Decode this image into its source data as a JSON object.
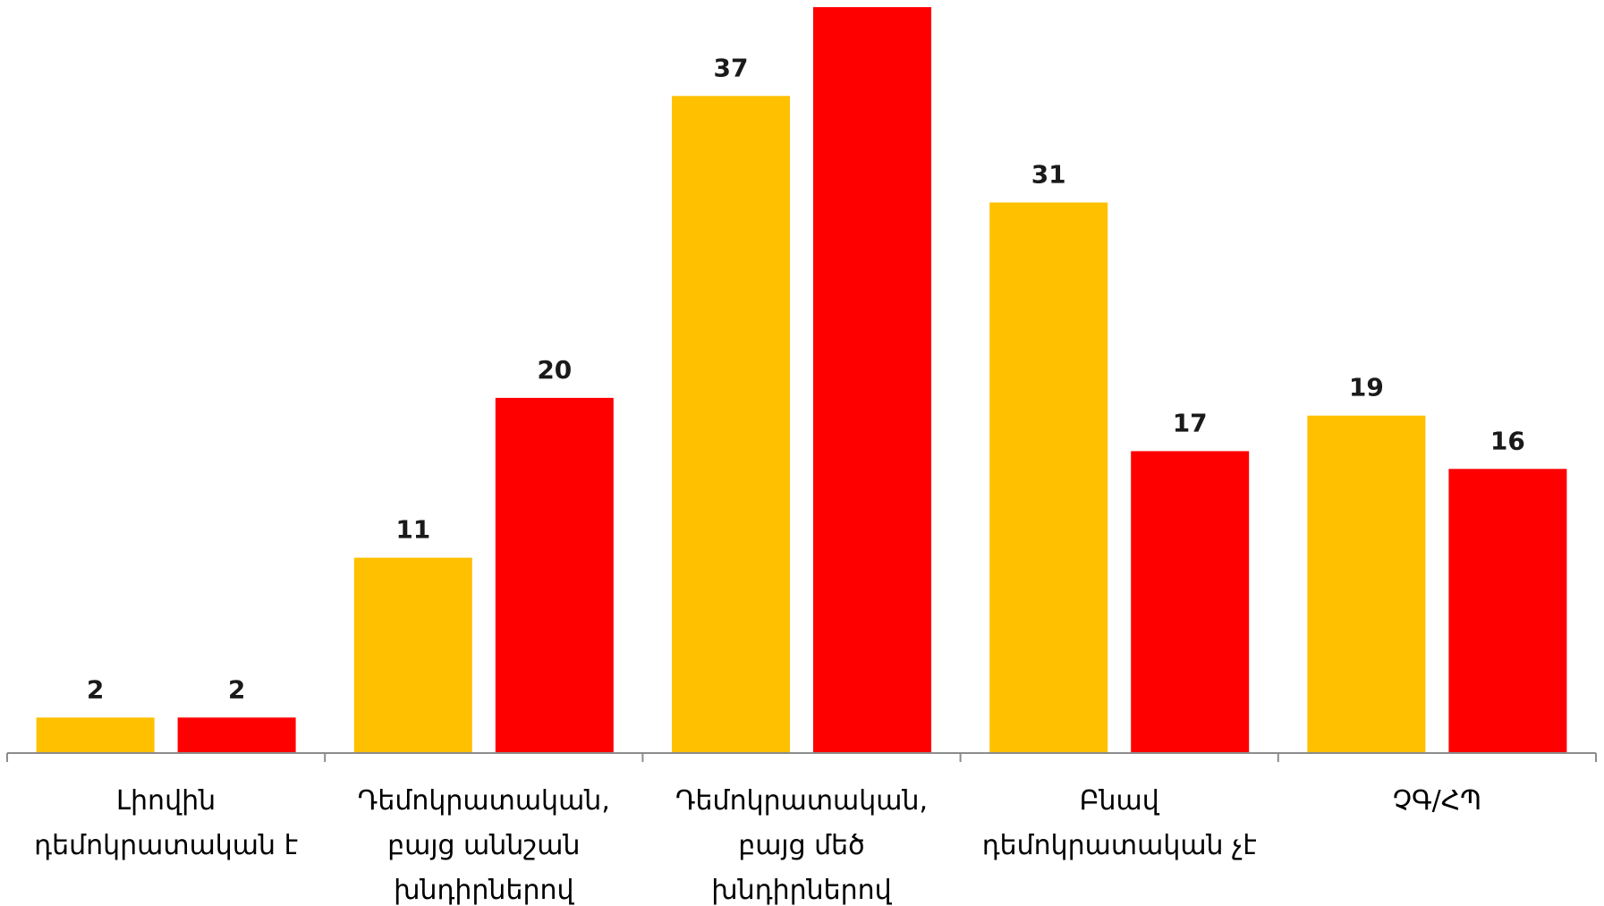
{
  "chart_data": {
    "type": "bar",
    "categories": [
      [
        "Լիովին",
        "դեմոկրատական է"
      ],
      [
        "Դեմոկրատական,",
        "բայց աննշան",
        "խնդիրներով"
      ],
      [
        "Դեմոկրատական,",
        "բայց մեծ",
        "խնդիրներով"
      ],
      [
        "Բնավ",
        "դեմոկրատական չէ"
      ],
      [
        "ՉԳ/ՀՊ"
      ]
    ],
    "series": [
      {
        "values": [
          2,
          11,
          37,
          31,
          19
        ],
        "color": "#FFC000",
        "labels": [
          "2",
          "11",
          "37",
          "31",
          "19"
        ]
      },
      {
        "values": [
          2,
          20,
          42,
          17,
          16
        ],
        "color": "#FF0000",
        "labels": [
          "2",
          "20",
          "",
          "17",
          "16"
        ]
      }
    ],
    "ylim": [
      0,
      42
    ],
    "grid": false,
    "legend": "none",
    "xlabel": "",
    "ylabel": "",
    "title": ""
  }
}
